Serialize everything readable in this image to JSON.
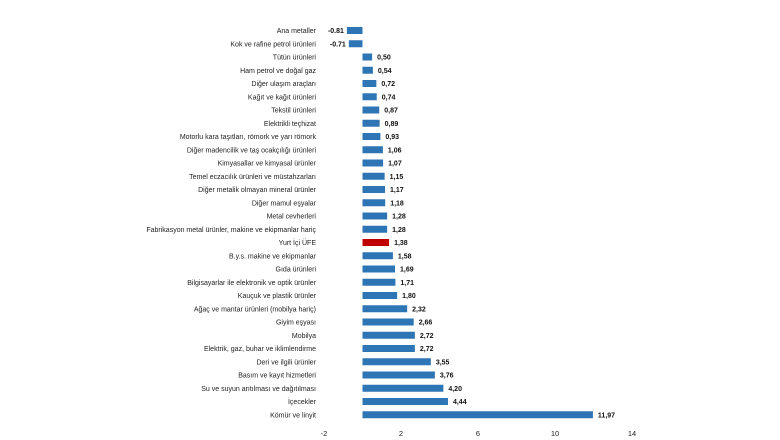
{
  "chart_data": {
    "type": "bar",
    "orientation": "horizontal",
    "categories": [
      "Ana metaller",
      "Kok ve rafine petrol ürünleri",
      "Tütün ürünleri",
      "Ham petrol ve doğal gaz",
      "Diğer ulaşım araçları",
      "Kağıt ve kağıt ürünleri",
      "Tekstil ürünleri",
      "Elektrikli teçhizat",
      "Motorlu kara taşıtları, römork ve yarı römork",
      "Diğer madencilik ve taş ocakçılığı ürünleri",
      "Kimyasallar ve kimyasal ürünler",
      "Temel eczacılık ürünleri ve müstahzarları",
      "Diğer metalik olmayan mineral ürünler",
      "Diğer mamul eşyalar",
      "Metal cevherleri",
      "Fabrikasyon metal ürünler, makine ve ekipmanlar hariç",
      "Yurt İçi ÜFE",
      "B.y.s. makine ve ekipmanlar",
      "Gıda ürünleri",
      "Bilgisayarlar ile elektronik ve optik ürünler",
      "Kauçuk ve plastik ürünler",
      "Ağaç ve mantar ürünleri (mobilya hariç)",
      "Giyim eşyası",
      "Mobilya",
      "Elektrik, gaz, buhar ve iklimlendirme",
      "Deri ve ilgili ürünler",
      "Basım ve kayıt hizmetleri",
      "Su ve suyun arıtılması ve dağıtılması",
      "İçecekler",
      "Kömür ve linyit"
    ],
    "values": [
      -0.81,
      -0.71,
      0.5,
      0.54,
      0.72,
      0.74,
      0.87,
      0.89,
      0.93,
      1.06,
      1.07,
      1.15,
      1.17,
      1.18,
      1.28,
      1.28,
      1.38,
      1.58,
      1.69,
      1.71,
      1.8,
      2.32,
      2.66,
      2.72,
      2.72,
      3.55,
      3.76,
      4.2,
      4.44,
      11.97
    ],
    "value_labels": [
      "-0.81",
      "-0.71",
      "0,50",
      "0,54",
      "0,72",
      "0,74",
      "0,87",
      "0,89",
      "0,93",
      "1,06",
      "1,07",
      "1,15",
      "1,17",
      "1,18",
      "1,28",
      "1,28",
      "1,38",
      "1,58",
      "1,69",
      "1,71",
      "1,80",
      "2,32",
      "2,66",
      "2,72",
      "2,72",
      "3,55",
      "3,76",
      "4,20",
      "4,44",
      "11,97"
    ],
    "highlight_index": 16,
    "x_ticks": [
      "-2",
      "2",
      "6",
      "10",
      "14"
    ],
    "xlim": [
      -2,
      14
    ],
    "title": "",
    "xlabel": "",
    "ylabel": "",
    "grid": false,
    "legend": "none",
    "colors": {
      "bar": "#2e75b6",
      "highlight": "#c00000"
    }
  }
}
